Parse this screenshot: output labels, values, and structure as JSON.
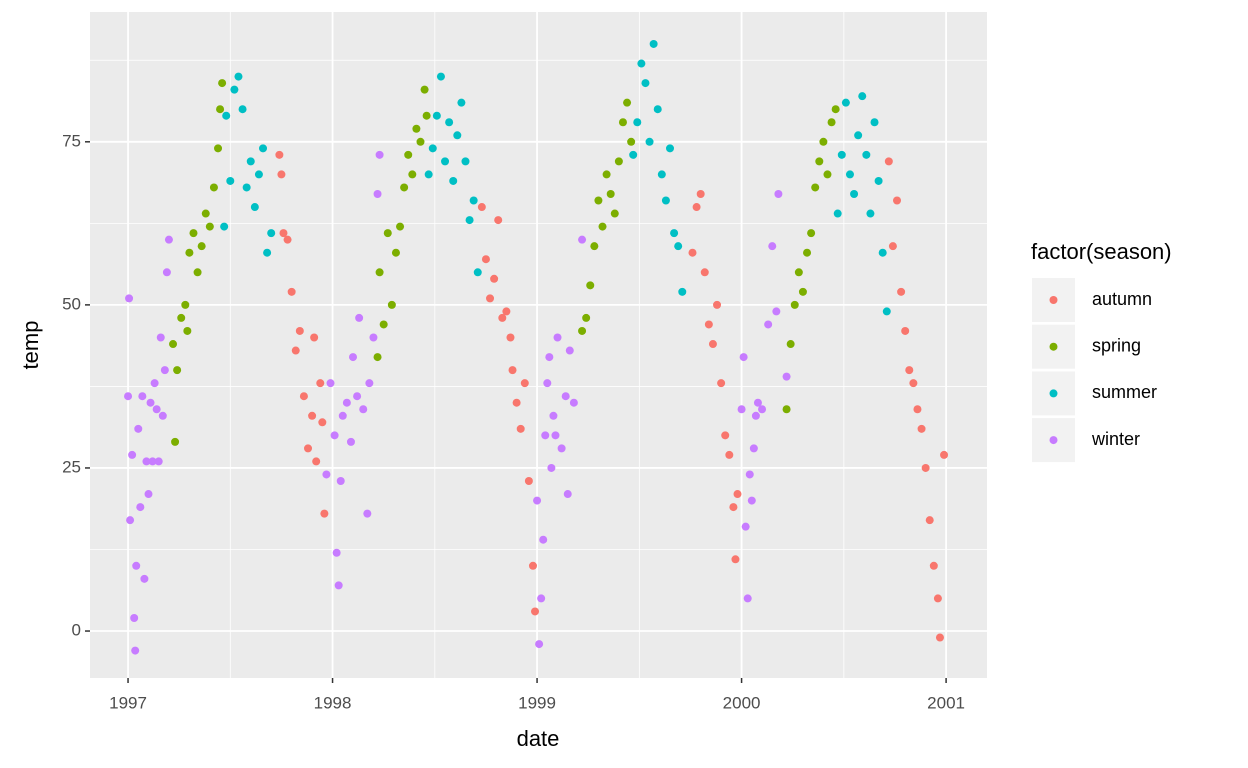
{
  "chart_data": {
    "type": "scatter",
    "x_label": "date",
    "y_label": "temp",
    "legend_title": "factor(season)",
    "legend_position": "right",
    "xlim": [
      1996.814,
      2001.2
    ],
    "xticks": [
      1997,
      1998,
      1999,
      2000,
      2001
    ],
    "ylim": [
      -7.2,
      94.9
    ],
    "yticks": [
      0,
      25,
      50,
      75
    ],
    "grid": true,
    "series": [
      {
        "name": "autumn",
        "color": "#F8766D",
        "x": [
          1997.74,
          1997.75,
          1997.76,
          1997.78,
          1997.8,
          1997.82,
          1997.84,
          1997.86,
          1997.88,
          1997.9,
          1997.91,
          1997.92,
          1997.94,
          1997.95,
          1997.96,
          1998.73,
          1998.75,
          1998.77,
          1998.79,
          1998.81,
          1998.83,
          1998.85,
          1998.87,
          1998.88,
          1998.9,
          1998.92,
          1998.94,
          1998.96,
          1998.98,
          1998.99,
          1999.76,
          1999.78,
          1999.8,
          1999.82,
          1999.84,
          1999.86,
          1999.88,
          1999.9,
          1999.92,
          1999.94,
          1999.96,
          1999.97,
          1999.98,
          2000.72,
          2000.74,
          2000.76,
          2000.78,
          2000.8,
          2000.82,
          2000.84,
          2000.86,
          2000.88,
          2000.9,
          2000.92,
          2000.94,
          2000.96,
          2000.97,
          2000.99
        ],
        "values": [
          73,
          70,
          61,
          60,
          52,
          43,
          46,
          36,
          28,
          33,
          45,
          26,
          38,
          32,
          18,
          65,
          57,
          51,
          54,
          63,
          48,
          49,
          45,
          40,
          35,
          31,
          38,
          23,
          10,
          3,
          58,
          65,
          67,
          55,
          47,
          44,
          50,
          38,
          30,
          27,
          19,
          11,
          21,
          72,
          59,
          66,
          52,
          46,
          40,
          38,
          34,
          31,
          25,
          17,
          10,
          5,
          -1,
          27
        ]
      },
      {
        "name": "spring",
        "color": "#7CAE00",
        "x": [
          1997.22,
          1997.23,
          1997.24,
          1997.26,
          1997.28,
          1997.29,
          1997.3,
          1997.32,
          1997.34,
          1997.36,
          1997.38,
          1997.4,
          1997.42,
          1997.44,
          1997.45,
          1997.46,
          1998.22,
          1998.23,
          1998.25,
          1998.27,
          1998.29,
          1998.31,
          1998.33,
          1998.35,
          1998.37,
          1998.39,
          1998.41,
          1998.43,
          1998.45,
          1998.46,
          1999.22,
          1999.24,
          1999.26,
          1999.28,
          1999.3,
          1999.32,
          1999.34,
          1999.36,
          1999.38,
          1999.4,
          1999.42,
          1999.44,
          1999.46,
          2000.22,
          2000.24,
          2000.26,
          2000.28,
          2000.3,
          2000.32,
          2000.34,
          2000.36,
          2000.38,
          2000.4,
          2000.42,
          2000.44,
          2000.46
        ],
        "values": [
          44,
          29,
          40,
          48,
          50,
          46,
          58,
          61,
          55,
          59,
          64,
          62,
          68,
          74,
          80,
          84,
          42,
          55,
          47,
          61,
          50,
          58,
          62,
          68,
          73,
          70,
          77,
          75,
          83,
          79,
          46,
          48,
          53,
          59,
          66,
          62,
          70,
          67,
          64,
          72,
          78,
          81,
          75,
          34,
          44,
          50,
          55,
          52,
          58,
          61,
          68,
          72,
          75,
          70,
          78,
          80
        ]
      },
      {
        "name": "summer",
        "color": "#00BFC4",
        "x": [
          1997.47,
          1997.48,
          1997.5,
          1997.52,
          1997.54,
          1997.56,
          1997.58,
          1997.6,
          1997.62,
          1997.64,
          1997.66,
          1997.68,
          1997.7,
          1998.47,
          1998.49,
          1998.51,
          1998.53,
          1998.55,
          1998.57,
          1998.59,
          1998.61,
          1998.63,
          1998.65,
          1998.67,
          1998.69,
          1998.71,
          1999.47,
          1999.49,
          1999.51,
          1999.53,
          1999.55,
          1999.57,
          1999.59,
          1999.61,
          1999.63,
          1999.65,
          1999.67,
          1999.69,
          1999.71,
          2000.47,
          2000.49,
          2000.51,
          2000.53,
          2000.55,
          2000.57,
          2000.59,
          2000.61,
          2000.63,
          2000.65,
          2000.67,
          2000.69,
          2000.71
        ],
        "values": [
          62,
          79,
          69,
          83,
          85,
          80,
          68,
          72,
          65,
          70,
          74,
          58,
          61,
          70,
          74,
          79,
          85,
          72,
          78,
          69,
          76,
          81,
          72,
          63,
          66,
          55,
          73,
          78,
          87,
          84,
          75,
          90,
          80,
          70,
          66,
          74,
          61,
          59,
          52,
          64,
          73,
          81,
          70,
          67,
          76,
          82,
          73,
          64,
          78,
          69,
          58,
          49
        ]
      },
      {
        "name": "winter",
        "color": "#C77CFF",
        "x": [
          1997.0,
          1997.005,
          1997.01,
          1997.02,
          1997.03,
          1997.035,
          1997.04,
          1997.05,
          1997.06,
          1997.07,
          1997.08,
          1997.09,
          1997.1,
          1997.11,
          1997.12,
          1997.13,
          1997.14,
          1997.15,
          1997.16,
          1997.17,
          1997.18,
          1997.19,
          1997.2,
          1997.97,
          1997.99,
          1998.01,
          1998.02,
          1998.03,
          1998.04,
          1998.05,
          1998.07,
          1998.09,
          1998.1,
          1998.12,
          1998.13,
          1998.15,
          1998.17,
          1998.18,
          1998.2,
          1998.22,
          1998.23,
          1999.0,
          1999.01,
          1999.02,
          1999.03,
          1999.04,
          1999.05,
          1999.06,
          1999.07,
          1999.08,
          1999.09,
          1999.1,
          1999.12,
          1999.14,
          1999.15,
          1999.16,
          1999.18,
          1999.22,
          2000.0,
          2000.01,
          2000.02,
          2000.03,
          2000.04,
          2000.05,
          2000.06,
          2000.07,
          2000.08,
          2000.1,
          2000.13,
          2000.15,
          2000.17,
          2000.18,
          2000.22
        ],
        "values": [
          36,
          51,
          17,
          27,
          2,
          -3,
          10,
          31,
          19,
          36,
          8,
          26,
          21,
          35,
          26,
          38,
          34,
          26,
          45,
          33,
          40,
          55,
          60,
          24,
          38,
          30,
          12,
          7,
          23,
          33,
          35,
          29,
          42,
          36,
          48,
          34,
          18,
          38,
          45,
          67,
          73,
          20,
          -2,
          5,
          14,
          30,
          38,
          42,
          25,
          33,
          30,
          45,
          28,
          36,
          21,
          43,
          35,
          60,
          34,
          42,
          16,
          5,
          24,
          20,
          28,
          33,
          35,
          34,
          47,
          59,
          49,
          67,
          39
        ]
      }
    ]
  }
}
